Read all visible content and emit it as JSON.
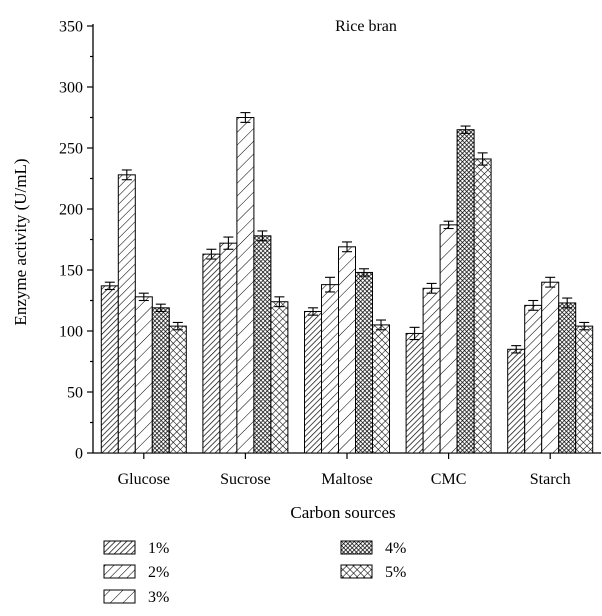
{
  "chart_data": {
    "type": "bar",
    "title": "Rice bran",
    "xlabel": "Carbon sources",
    "ylabel": "Enzyme activity (U/mL)",
    "ylim": [
      0,
      350
    ],
    "yticks": [
      0,
      50,
      100,
      150,
      200,
      250,
      300,
      350
    ],
    "categories": [
      "Glucose",
      "Sucrose",
      "Maltose",
      "CMC",
      "Starch"
    ],
    "series": [
      {
        "name": "1%",
        "pattern": "diag-dense",
        "values": [
          137,
          163,
          116,
          98,
          85
        ],
        "errors": [
          3,
          4,
          3,
          5,
          3
        ]
      },
      {
        "name": "2%",
        "pattern": "diag-medium",
        "values": [
          228,
          172,
          138,
          135,
          121
        ],
        "errors": [
          4,
          5,
          6,
          4,
          4
        ]
      },
      {
        "name": "3%",
        "pattern": "diag-sparse",
        "values": [
          128,
          275,
          169,
          187,
          140
        ],
        "errors": [
          3,
          4,
          4,
          3,
          4
        ]
      },
      {
        "name": "4%",
        "pattern": "cross-dense",
        "values": [
          119,
          178,
          148,
          265,
          123
        ],
        "errors": [
          3,
          4,
          3,
          3,
          4
        ]
      },
      {
        "name": "5%",
        "pattern": "cross-sparse",
        "values": [
          104,
          124,
          105,
          241,
          104
        ],
        "errors": [
          3,
          4,
          4,
          5,
          3
        ]
      }
    ],
    "legend_placement": "bottom",
    "grid": false
  }
}
